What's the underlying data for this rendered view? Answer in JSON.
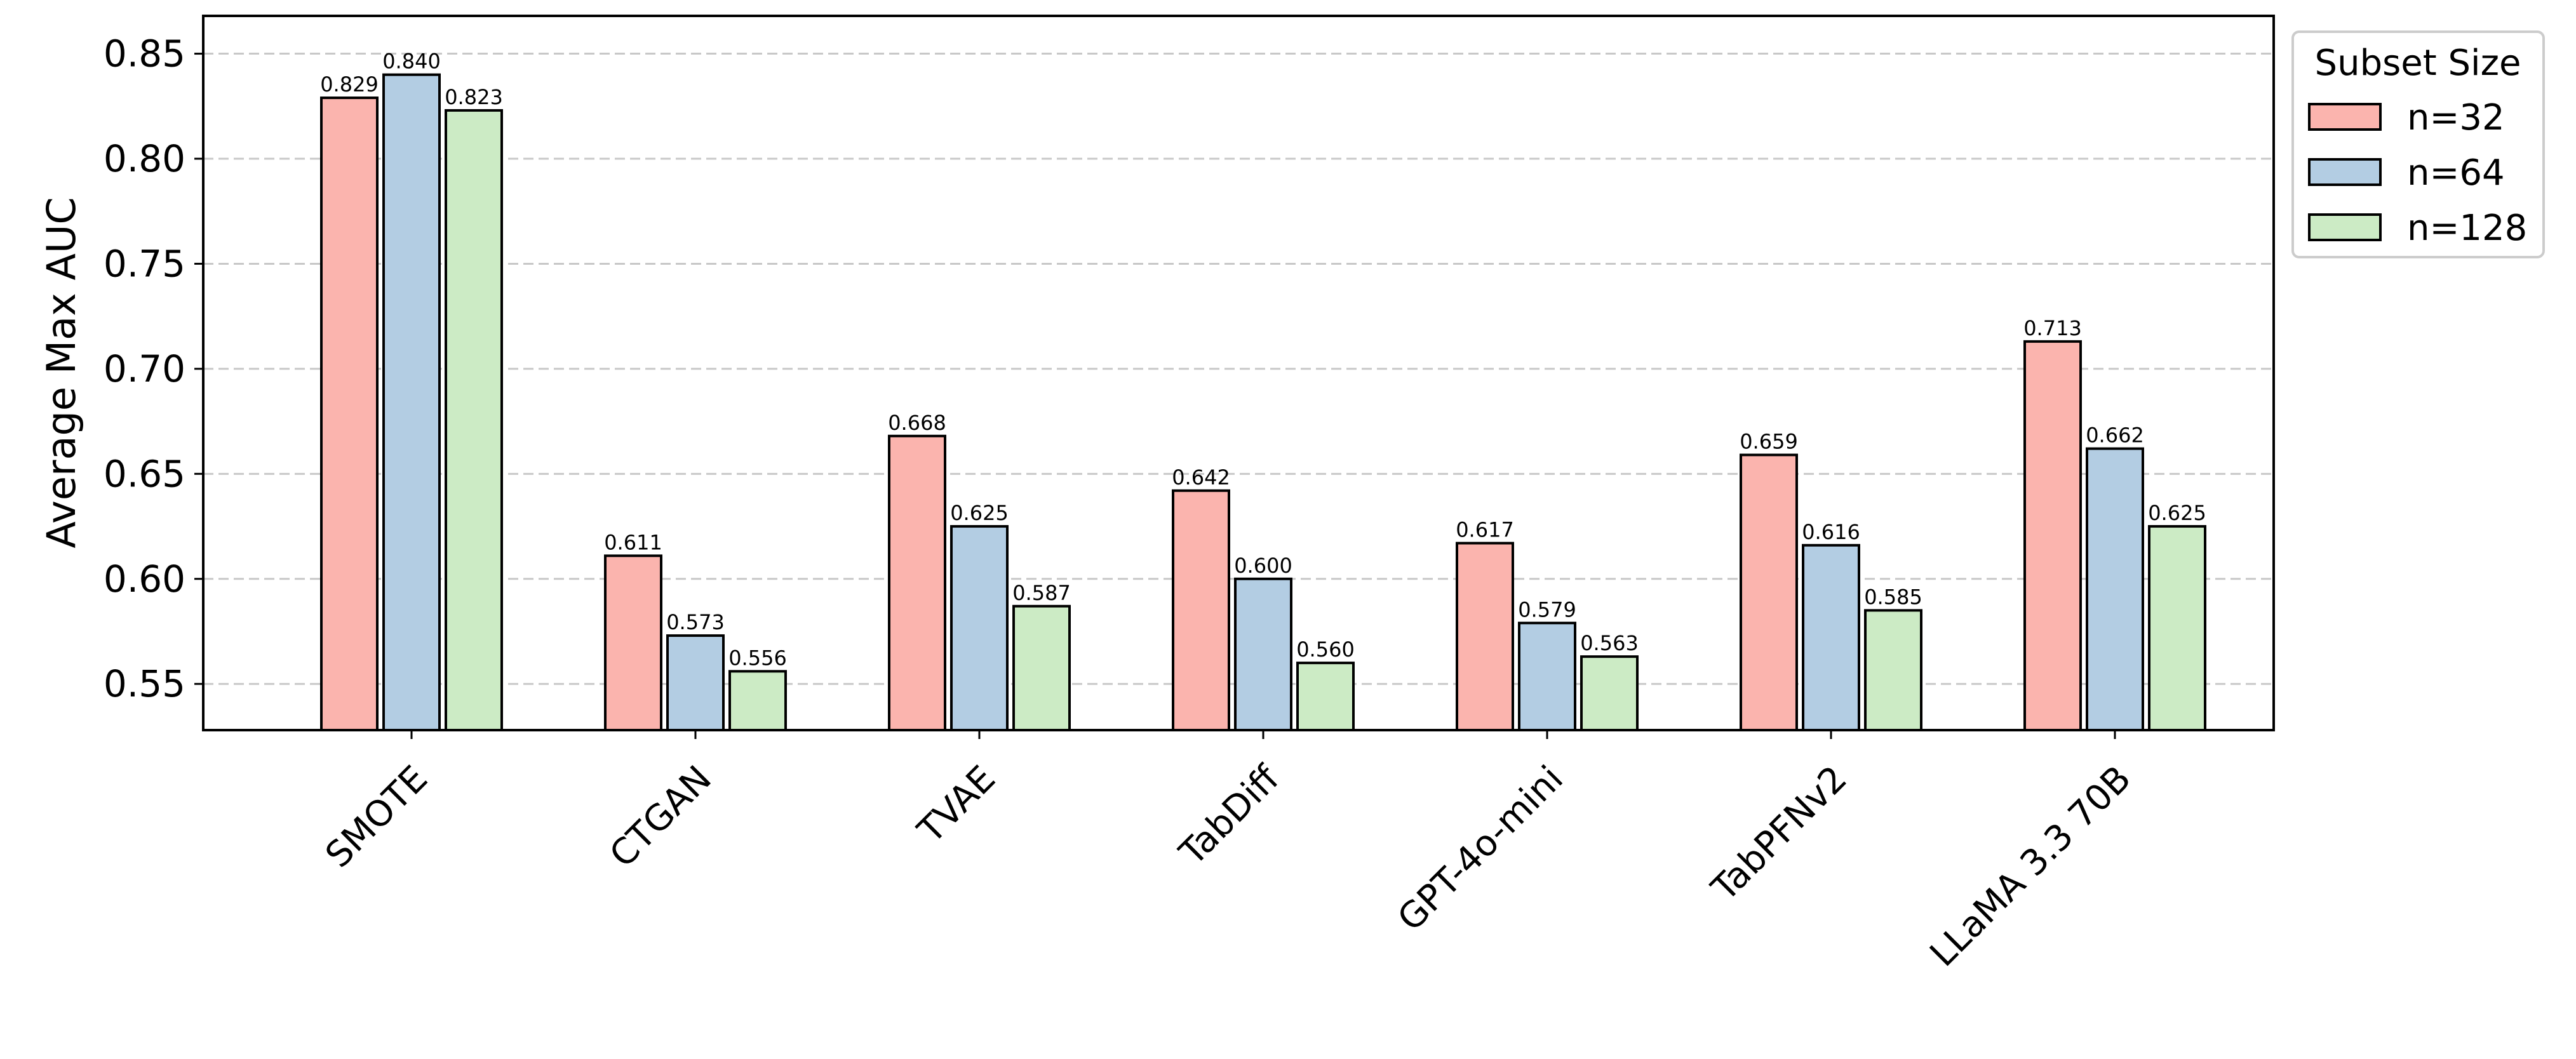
{
  "chart_data": {
    "type": "bar",
    "title": "",
    "xlabel": "",
    "ylabel": "Average Max AUC",
    "ylim": [
      0.528,
      0.868
    ],
    "yticks": [
      "0.55",
      "0.60",
      "0.65",
      "0.70",
      "0.75",
      "0.80",
      "0.85"
    ],
    "grid": "horizontal dashed",
    "categories": [
      "SMOTE",
      "CTGAN",
      "TVAE",
      "TabDiff",
      "GPT-4o-mini",
      "TabPFNv2",
      "LLaMA 3.3 70B"
    ],
    "series": [
      {
        "name": "n=32",
        "color": "#fbb4ae",
        "values": [
          0.829,
          0.611,
          0.668,
          0.642,
          0.617,
          0.659,
          0.713
        ],
        "labels": [
          "0.829",
          "0.611",
          "0.668",
          "0.642",
          "0.617",
          "0.659",
          "0.713"
        ]
      },
      {
        "name": "n=64",
        "color": "#b3cde3",
        "values": [
          0.84,
          0.573,
          0.625,
          0.6,
          0.579,
          0.616,
          0.662
        ],
        "labels": [
          "0.840",
          "0.573",
          "0.625",
          "0.600",
          "0.579",
          "0.616",
          "0.662"
        ]
      },
      {
        "name": "n=128",
        "color": "#ccebc5",
        "values": [
          0.823,
          0.556,
          0.587,
          0.56,
          0.563,
          0.585,
          0.625
        ],
        "labels": [
          "0.823",
          "0.556",
          "0.587",
          "0.560",
          "0.563",
          "0.585",
          "0.625"
        ]
      }
    ],
    "legend": {
      "title": "Subset Size",
      "position": "outside-right-top"
    }
  }
}
